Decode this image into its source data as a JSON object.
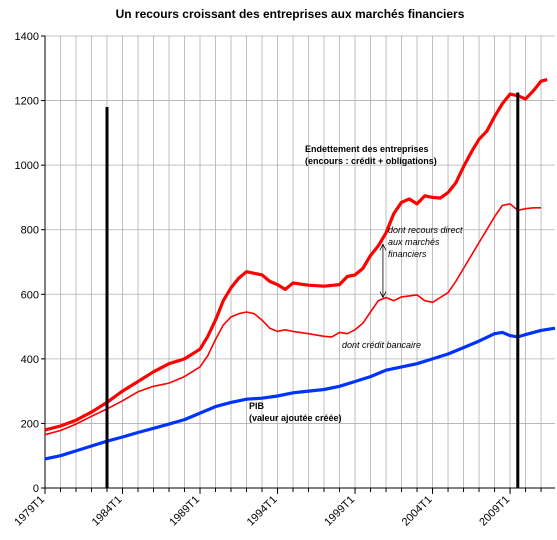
{
  "chart_data": {
    "type": "line",
    "title": "Un recours croissant des entreprises aux marchés financiers",
    "xlim": [
      1979,
      2011.9
    ],
    "ylim": [
      0,
      1400
    ],
    "yticks": [
      0,
      200,
      400,
      600,
      800,
      1000,
      1200,
      1400
    ],
    "xticks": [
      {
        "value": 1979,
        "label": "1979T1"
      },
      {
        "value": 1984,
        "label": "1984T1"
      },
      {
        "value": 1989,
        "label": "1989T1"
      },
      {
        "value": 1994,
        "label": "1994T1"
      },
      {
        "value": 1999,
        "label": "1999T1"
      },
      {
        "value": 2004,
        "label": "2004T1"
      },
      {
        "value": 2009,
        "label": "2009T1"
      }
    ],
    "xgrid": [
      1979,
      1980,
      1981,
      1982,
      1983,
      1984,
      1985,
      1986,
      1987,
      1988,
      1989,
      1990,
      1991,
      1992,
      1993,
      1994,
      1995,
      1996,
      1997,
      1998,
      1999,
      2000,
      2001,
      2002,
      2003,
      2004,
      2005,
      2006,
      2007,
      2008,
      2009,
      2010,
      2011
    ],
    "grid": true,
    "series": [
      {
        "color": "#ff0000",
        "width": 3.2,
        "x": [
          1979,
          1980,
          1981,
          1982,
          1983,
          1984,
          1985,
          1986,
          1987,
          1988,
          1989,
          1989.5,
          1990,
          1990.5,
          1991,
          1991.5,
          1992,
          1992.5,
          1993,
          1993.5,
          1994,
          1994.5,
          1995,
          1996,
          1997,
          1998,
          1998.5,
          1999,
          1999.5,
          2000,
          2000.5,
          2001,
          2001.5,
          2002,
          2002.5,
          2003,
          2003.5,
          2004,
          2004.5,
          2005,
          2005.5,
          2006,
          2006.5,
          2007,
          2007.5,
          2008,
          2008.5,
          2009,
          2009.5,
          2010,
          2010.5,
          2011,
          2011.4
        ],
        "values": [
          180,
          192,
          210,
          235,
          265,
          300,
          330,
          360,
          385,
          400,
          430,
          470,
          520,
          580,
          620,
          650,
          670,
          665,
          660,
          640,
          630,
          615,
          635,
          628,
          625,
          630,
          655,
          660,
          680,
          720,
          750,
          790,
          850,
          885,
          895,
          880,
          905,
          900,
          898,
          915,
          945,
          995,
          1040,
          1080,
          1105,
          1150,
          1190,
          1220,
          1215,
          1205,
          1230,
          1260,
          1265
        ]
      },
      {
        "color": "#ff0000",
        "width": 1.6,
        "x": [
          1979,
          1980,
          1981,
          1982,
          1983,
          1984,
          1985,
          1986,
          1987,
          1988,
          1989,
          1989.5,
          1990,
          1990.5,
          1991,
          1991.5,
          1992,
          1992.5,
          1993,
          1993.5,
          1994,
          1994.5,
          1995,
          1996,
          1997,
          1997.5,
          1998,
          1998.5,
          1999,
          1999.5,
          2000,
          2000.5,
          2001,
          2001.5,
          2002,
          2002.5,
          2003,
          2003.5,
          2004,
          2004.5,
          2005,
          2005.5,
          2006,
          2006.5,
          2007,
          2007.5,
          2008,
          2008.5,
          2009,
          2009.5,
          2010,
          2010.5,
          2011
        ],
        "values": [
          165,
          178,
          198,
          222,
          245,
          270,
          298,
          315,
          325,
          345,
          375,
          410,
          460,
          505,
          530,
          540,
          545,
          540,
          520,
          495,
          485,
          490,
          485,
          478,
          470,
          468,
          482,
          478,
          490,
          510,
          545,
          580,
          590,
          580,
          592,
          595,
          598,
          580,
          575,
          590,
          605,
          640,
          680,
          720,
          760,
          800,
          840,
          875,
          880,
          860,
          865,
          868,
          868
        ]
      },
      {
        "color": "#0033ff",
        "width": 3.2,
        "x": [
          1979,
          1980,
          1981,
          1982,
          1983,
          1984,
          1985,
          1986,
          1987,
          1988,
          1989,
          1990,
          1991,
          1992,
          1993,
          1994,
          1995,
          1996,
          1997,
          1998,
          1999,
          2000,
          2001,
          2002,
          2003,
          2004,
          2005,
          2006,
          2007,
          2008,
          2008.5,
          2009,
          2009.5,
          2010,
          2011,
          2011.9
        ],
        "values": [
          90,
          100,
          115,
          130,
          145,
          158,
          172,
          185,
          198,
          212,
          232,
          252,
          265,
          275,
          278,
          285,
          295,
          300,
          305,
          315,
          330,
          345,
          365,
          375,
          385,
          400,
          415,
          435,
          455,
          478,
          482,
          472,
          468,
          475,
          488,
          495
        ]
      }
    ],
    "vlines": [
      {
        "x": 1983,
        "top": 1180
      },
      {
        "x": 2009.5,
        "top": 1225
      }
    ],
    "arrow": {
      "x": 2000.8,
      "from": 755,
      "to": 590
    },
    "annotations": [
      {
        "lines": [
          "Endettement des entreprises",
          "(encours : crédit + obligations)"
        ],
        "color": "#ff0000",
        "style": "bold"
      },
      {
        "lines": [
          "dont recours direct",
          "aux marchés",
          "financiers"
        ],
        "color": "#ff0000",
        "style": "italic"
      },
      {
        "lines": [
          "dont crédit bancaire"
        ],
        "color": "#ff0000",
        "style": "italic"
      },
      {
        "lines": [
          "PIB",
          "(valeur ajoutée créée)"
        ],
        "color": "#0033ff",
        "style": "bold"
      }
    ]
  }
}
